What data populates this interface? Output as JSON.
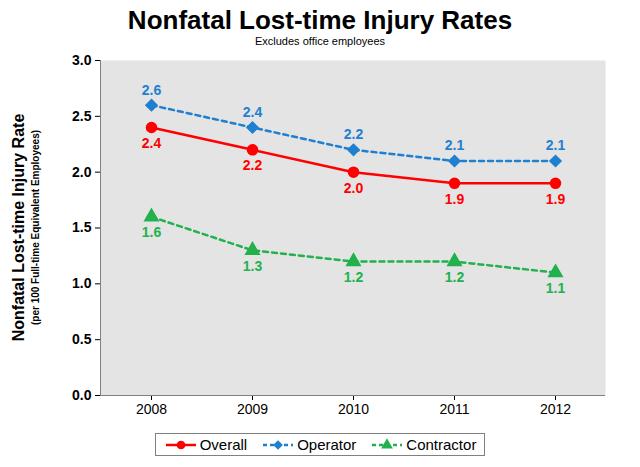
{
  "chart_data": {
    "type": "line",
    "title": "Nonfatal Lost-time Injury Rates",
    "subtitle": "Excludes office employees",
    "ylabel": "Nonfatal Lost-time Injury Rate",
    "ylabel_note": "(per 100 Full-time Equivalent Employees)",
    "categories": [
      "2008",
      "2009",
      "2010",
      "2011",
      "2012"
    ],
    "ylim": [
      0,
      3
    ],
    "yticks": [
      {
        "value": 0,
        "label": "0.0"
      },
      0.5,
      {
        "value": 1,
        "label": "1.0"
      },
      1.5,
      {
        "value": 2,
        "label": "2.0"
      },
      2.5,
      {
        "value": 3,
        "label": "3.0"
      }
    ],
    "grid": false,
    "legend": "bottom",
    "data_labels": true,
    "series": [
      {
        "name": "Overall",
        "color": "#ff0000",
        "marker": "circle",
        "line_style": "solid",
        "values": [
          2.4,
          2.2,
          2.0,
          1.9,
          1.9
        ],
        "value_labels": [
          "2.4",
          "2.2",
          "2.0",
          "1.9",
          "1.9"
        ]
      },
      {
        "name": "Operator",
        "color": "#1f7fd0",
        "marker": "diamond",
        "line_style": "dashed",
        "values": [
          2.6,
          2.4,
          2.2,
          2.1,
          2.1
        ],
        "value_labels": [
          "2.6",
          "2.4",
          "2.2",
          "2.1",
          "2.1"
        ]
      },
      {
        "name": "Contractor",
        "color": "#22b14c",
        "marker": "triangle",
        "line_style": "dashed",
        "values": [
          1.6,
          1.3,
          1.2,
          1.2,
          1.1
        ],
        "value_labels": [
          "1.6",
          "1.3",
          "1.2",
          "1.2",
          "1.1"
        ]
      }
    ]
  }
}
